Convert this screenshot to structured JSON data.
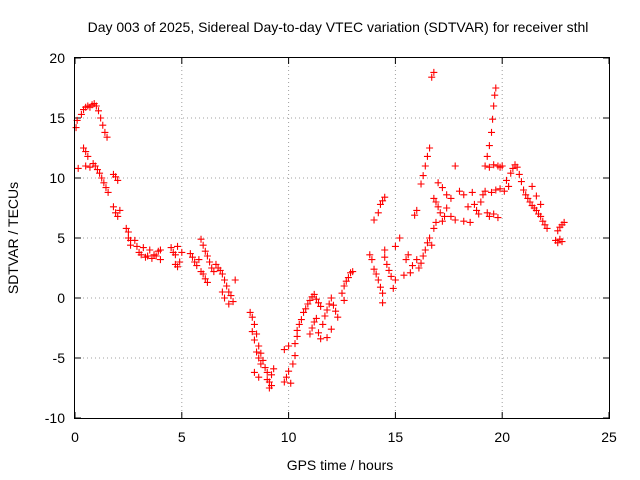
{
  "chart_data": {
    "type": "scatter",
    "title": "Day 003 of 2025, Sidereal Day-to-day VTEC variation (SDTVAR) for receiver sthl",
    "xlabel": "GPS time / hours",
    "ylabel": "SDTVAR / TECUs",
    "xlim": [
      0,
      25
    ],
    "ylim": [
      -10,
      20
    ],
    "xticks": [
      "0",
      "5",
      "10",
      "15",
      "20",
      "25"
    ],
    "yticks": [
      "-10",
      "-5",
      "0",
      "5",
      "10",
      "15",
      "20"
    ],
    "grid": true,
    "marker": "plus",
    "color": "#ff0000",
    "series": [
      {
        "name": "SDTVAR",
        "points": [
          [
            0.05,
            14.2
          ],
          [
            0.1,
            14.8
          ],
          [
            0.15,
            10.8
          ],
          [
            0.3,
            15.3
          ],
          [
            0.4,
            15.7
          ],
          [
            0.5,
            15.9
          ],
          [
            0.6,
            16.0
          ],
          [
            0.7,
            15.9
          ],
          [
            0.8,
            16.1
          ],
          [
            0.9,
            16.2
          ],
          [
            1.0,
            16.0
          ],
          [
            1.1,
            15.6
          ],
          [
            1.2,
            15.0
          ],
          [
            1.3,
            14.4
          ],
          [
            1.4,
            13.8
          ],
          [
            1.5,
            13.4
          ],
          [
            0.4,
            12.5
          ],
          [
            0.5,
            12.2
          ],
          [
            0.6,
            11.8
          ],
          [
            0.5,
            11.0
          ],
          [
            0.7,
            10.9
          ],
          [
            0.85,
            11.2
          ],
          [
            0.95,
            11.0
          ],
          [
            1.05,
            10.7
          ],
          [
            1.15,
            10.4
          ],
          [
            1.25,
            10.0
          ],
          [
            1.35,
            9.6
          ],
          [
            1.45,
            9.2
          ],
          [
            1.55,
            8.8
          ],
          [
            1.8,
            10.3
          ],
          [
            1.9,
            10.1
          ],
          [
            2.0,
            9.8
          ],
          [
            1.8,
            7.6
          ],
          [
            1.9,
            7.1
          ],
          [
            2.0,
            6.8
          ],
          [
            2.1,
            7.3
          ],
          [
            2.4,
            5.8
          ],
          [
            2.5,
            5.5
          ],
          [
            2.5,
            5.0
          ],
          [
            2.6,
            4.8
          ],
          [
            2.6,
            4.4
          ],
          [
            2.8,
            4.8
          ],
          [
            2.9,
            4.3
          ],
          [
            3.0,
            3.8
          ],
          [
            3.1,
            3.6
          ],
          [
            3.2,
            4.2
          ],
          [
            3.3,
            3.4
          ],
          [
            3.4,
            3.5
          ],
          [
            3.5,
            4.0
          ],
          [
            3.6,
            3.3
          ],
          [
            3.7,
            3.6
          ],
          [
            3.8,
            3.5
          ],
          [
            3.9,
            3.9
          ],
          [
            4.0,
            4.0
          ],
          [
            4.0,
            3.2
          ],
          [
            4.5,
            4.2
          ],
          [
            4.6,
            3.8
          ],
          [
            4.7,
            3.6
          ],
          [
            4.8,
            4.3
          ],
          [
            4.7,
            2.8
          ],
          [
            4.8,
            2.6
          ],
          [
            4.9,
            3.0
          ],
          [
            5.0,
            3.8
          ],
          [
            5.4,
            3.7
          ],
          [
            5.5,
            3.4
          ],
          [
            5.6,
            3.0
          ],
          [
            5.7,
            2.7
          ],
          [
            5.8,
            3.2
          ],
          [
            5.9,
            2.2
          ],
          [
            6.0,
            2.0
          ],
          [
            6.1,
            1.6
          ],
          [
            6.2,
            1.3
          ],
          [
            5.9,
            4.9
          ],
          [
            6.0,
            4.4
          ],
          [
            6.1,
            3.9
          ],
          [
            6.2,
            3.5
          ],
          [
            6.3,
            3.0
          ],
          [
            6.4,
            2.5
          ],
          [
            6.5,
            2.2
          ],
          [
            6.6,
            2.8
          ],
          [
            6.7,
            2.5
          ],
          [
            6.8,
            2.3
          ],
          [
            6.9,
            2.0
          ],
          [
            7.0,
            1.5
          ],
          [
            7.1,
            1.0
          ],
          [
            7.2,
            0.5
          ],
          [
            7.3,
            0.2
          ],
          [
            7.4,
            -0.3
          ],
          [
            7.5,
            1.5
          ],
          [
            6.9,
            0.5
          ],
          [
            7.0,
            0.0
          ],
          [
            7.2,
            -0.5
          ],
          [
            8.2,
            -1.2
          ],
          [
            8.3,
            -1.6
          ],
          [
            8.3,
            -2.8
          ],
          [
            8.4,
            -2.2
          ],
          [
            8.4,
            -3.5
          ],
          [
            8.5,
            -3.0
          ],
          [
            8.5,
            -4.5
          ],
          [
            8.6,
            -4.0
          ],
          [
            8.6,
            -5.0
          ],
          [
            8.7,
            -4.6
          ],
          [
            8.7,
            -5.5
          ],
          [
            8.8,
            -5.2
          ],
          [
            8.9,
            -5.8
          ],
          [
            9.0,
            -6.2
          ],
          [
            9.0,
            -6.8
          ],
          [
            9.1,
            -7.0
          ],
          [
            9.1,
            -7.5
          ],
          [
            9.2,
            -7.3
          ],
          [
            9.2,
            -6.4
          ],
          [
            9.3,
            -5.9
          ],
          [
            8.4,
            -6.2
          ],
          [
            8.6,
            -6.6
          ],
          [
            9.8,
            -7.0
          ],
          [
            9.9,
            -6.6
          ],
          [
            10.0,
            -6.1
          ],
          [
            10.1,
            -7.1
          ],
          [
            9.8,
            -4.3
          ],
          [
            10.0,
            -4.0
          ],
          [
            10.2,
            -5.5
          ],
          [
            10.3,
            -4.8
          ],
          [
            10.3,
            -3.8
          ],
          [
            10.4,
            -3.2
          ],
          [
            10.4,
            -2.7
          ],
          [
            10.5,
            -2.2
          ],
          [
            10.6,
            -1.8
          ],
          [
            10.7,
            -1.2
          ],
          [
            10.8,
            -0.9
          ],
          [
            10.9,
            -0.5
          ],
          [
            11.0,
            -0.2
          ],
          [
            11.1,
            0.1
          ],
          [
            11.2,
            0.3
          ],
          [
            11.3,
            -0.1
          ],
          [
            11.4,
            -0.4
          ],
          [
            11.5,
            -0.7
          ],
          [
            11.0,
            -3.0
          ],
          [
            11.1,
            -2.5
          ],
          [
            11.2,
            -2.0
          ],
          [
            11.3,
            -1.7
          ],
          [
            11.4,
            -2.9
          ],
          [
            11.5,
            -3.4
          ],
          [
            11.6,
            -2.2
          ],
          [
            11.7,
            -1.5
          ],
          [
            11.8,
            -1.0
          ],
          [
            11.9,
            -0.5
          ],
          [
            12.0,
            0.0
          ],
          [
            12.1,
            -0.6
          ],
          [
            12.2,
            -1.1
          ],
          [
            12.3,
            -1.6
          ],
          [
            12.0,
            -2.6
          ],
          [
            11.8,
            -3.3
          ],
          [
            12.6,
            1.0
          ],
          [
            12.7,
            1.4
          ],
          [
            12.8,
            1.7
          ],
          [
            12.9,
            2.1
          ],
          [
            12.5,
            0.4
          ],
          [
            12.6,
            -0.2
          ],
          [
            13.0,
            2.2
          ],
          [
            13.8,
            3.6
          ],
          [
            13.9,
            3.2
          ],
          [
            14.0,
            2.4
          ],
          [
            14.1,
            2.0
          ],
          [
            14.2,
            1.5
          ],
          [
            14.3,
            0.9
          ],
          [
            14.4,
            0.4
          ],
          [
            14.4,
            -0.4
          ],
          [
            14.5,
            3.4
          ],
          [
            14.6,
            2.8
          ],
          [
            14.7,
            2.3
          ],
          [
            14.8,
            1.8
          ],
          [
            14.3,
            7.8
          ],
          [
            14.4,
            8.1
          ],
          [
            14.5,
            8.4
          ],
          [
            14.2,
            7.1
          ],
          [
            14.0,
            6.5
          ],
          [
            14.5,
            4.0
          ],
          [
            14.9,
            0.8
          ],
          [
            15.0,
            1.5
          ],
          [
            15.0,
            4.3
          ],
          [
            15.2,
            5.0
          ],
          [
            15.4,
            1.9
          ],
          [
            15.5,
            3.2
          ],
          [
            15.6,
            3.6
          ],
          [
            15.7,
            2.1
          ],
          [
            15.8,
            2.7
          ],
          [
            16.0,
            3.2
          ],
          [
            16.1,
            2.5
          ],
          [
            16.2,
            2.9
          ],
          [
            16.3,
            3.5
          ],
          [
            16.4,
            4.0
          ],
          [
            16.5,
            4.6
          ],
          [
            16.6,
            5.0
          ],
          [
            16.7,
            4.4
          ],
          [
            16.8,
            5.8
          ],
          [
            16.9,
            6.3
          ],
          [
            15.9,
            6.9
          ],
          [
            16.0,
            7.3
          ],
          [
            16.2,
            9.5
          ],
          [
            16.3,
            10.2
          ],
          [
            16.4,
            11.0
          ],
          [
            16.5,
            11.8
          ],
          [
            16.6,
            12.5
          ],
          [
            16.7,
            18.4
          ],
          [
            16.8,
            18.8
          ],
          [
            16.8,
            8.3
          ],
          [
            16.9,
            8.0
          ],
          [
            17.0,
            7.6
          ],
          [
            17.1,
            7.1
          ],
          [
            17.2,
            6.4
          ],
          [
            17.3,
            6.8
          ],
          [
            17.4,
            7.5
          ],
          [
            17.0,
            9.6
          ],
          [
            17.2,
            9.2
          ],
          [
            17.4,
            8.6
          ],
          [
            17.6,
            8.3
          ],
          [
            17.8,
            11.0
          ],
          [
            18.0,
            8.9
          ],
          [
            18.2,
            8.6
          ],
          [
            18.4,
            7.6
          ],
          [
            18.2,
            6.4
          ],
          [
            17.8,
            6.5
          ],
          [
            17.6,
            6.8
          ],
          [
            18.5,
            6.3
          ],
          [
            18.6,
            8.8
          ],
          [
            18.7,
            7.8
          ],
          [
            18.8,
            7.3
          ],
          [
            18.9,
            7.0
          ],
          [
            19.0,
            8.0
          ],
          [
            19.1,
            8.6
          ],
          [
            19.2,
            8.9
          ],
          [
            19.3,
            7.1
          ],
          [
            19.4,
            6.8
          ],
          [
            19.6,
            7.0
          ],
          [
            19.8,
            6.7
          ],
          [
            19.2,
            11.0
          ],
          [
            19.3,
            11.8
          ],
          [
            19.4,
            12.7
          ],
          [
            19.5,
            13.8
          ],
          [
            19.55,
            14.9
          ],
          [
            19.6,
            16.0
          ],
          [
            19.65,
            16.9
          ],
          [
            19.7,
            17.5
          ],
          [
            19.4,
            10.9
          ],
          [
            19.6,
            11.1
          ],
          [
            19.8,
            11.0
          ],
          [
            19.9,
            10.9
          ],
          [
            20.0,
            11.0
          ],
          [
            19.5,
            8.8
          ],
          [
            19.7,
            9.0
          ],
          [
            19.9,
            9.1
          ],
          [
            20.1,
            8.9
          ],
          [
            20.2,
            9.8
          ],
          [
            20.3,
            9.3
          ],
          [
            20.4,
            10.4
          ],
          [
            20.5,
            10.8
          ],
          [
            20.6,
            11.1
          ],
          [
            20.7,
            10.9
          ],
          [
            20.8,
            10.3
          ],
          [
            20.9,
            9.7
          ],
          [
            21.0,
            9.0
          ],
          [
            21.1,
            8.6
          ],
          [
            21.2,
            8.3
          ],
          [
            21.3,
            8.0
          ],
          [
            21.4,
            7.7
          ],
          [
            21.5,
            7.5
          ],
          [
            21.6,
            7.3
          ],
          [
            21.7,
            7.0
          ],
          [
            21.8,
            6.8
          ],
          [
            21.9,
            6.4
          ],
          [
            22.0,
            6.1
          ],
          [
            22.1,
            5.8
          ],
          [
            21.4,
            9.3
          ],
          [
            21.6,
            8.5
          ],
          [
            21.8,
            7.8
          ],
          [
            22.5,
            4.8
          ],
          [
            22.6,
            4.6
          ],
          [
            22.7,
            4.9
          ],
          [
            22.8,
            4.7
          ],
          [
            22.7,
            5.9
          ],
          [
            22.8,
            6.1
          ],
          [
            22.9,
            6.3
          ],
          [
            22.6,
            5.6
          ]
        ]
      }
    ]
  }
}
